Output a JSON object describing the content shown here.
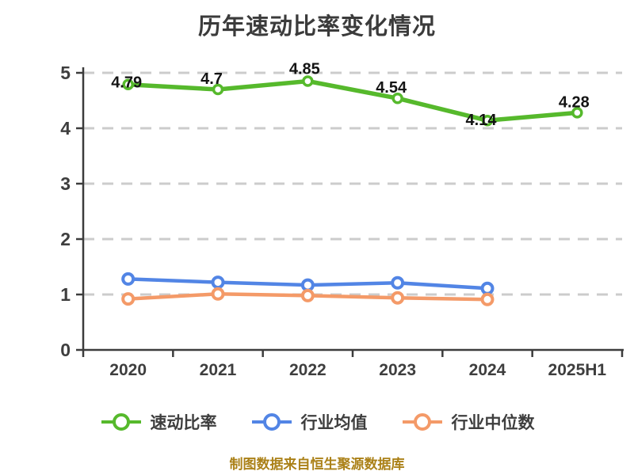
{
  "chart_data": {
    "type": "line",
    "title": "历年速动比率变化情况",
    "categories": [
      "2020",
      "2021",
      "2022",
      "2023",
      "2024",
      "2025H1"
    ],
    "series": [
      {
        "name": "速动比率",
        "color": "#56b92c",
        "values": [
          4.79,
          4.7,
          4.85,
          4.54,
          4.14,
          4.28
        ],
        "show_labels": true
      },
      {
        "name": "行业均值",
        "color": "#5285e5",
        "values": [
          1.28,
          1.22,
          1.17,
          1.21,
          1.11,
          null
        ],
        "show_labels": false
      },
      {
        "name": "行业中位数",
        "color": "#f49a68",
        "values": [
          0.92,
          1.01,
          0.98,
          0.94,
          0.91,
          null
        ],
        "show_labels": false
      }
    ],
    "xlabel": "",
    "ylabel": "",
    "ylim": [
      0,
      5
    ],
    "yticks": [
      0,
      1,
      2,
      3,
      4,
      5
    ],
    "grid": "horizontal-dashed",
    "legend_position": "bottom",
    "marker": "circle-white-fill",
    "colors": {
      "axis": "#3c3c3c",
      "grid": "#cccccc",
      "title": "#3b3b3b",
      "point_label": "#141414",
      "footer": "#ab8118",
      "background": "#ffffff"
    },
    "footer": "制图数据来自恒生聚源数据库"
  }
}
